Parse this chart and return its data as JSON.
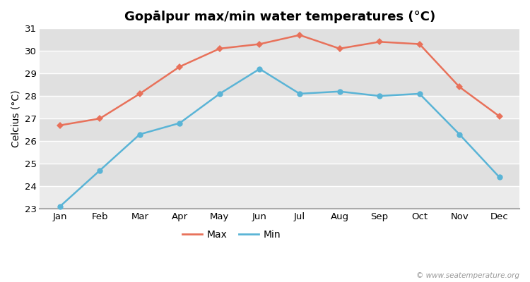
{
  "title": "Gopālpur max/min water temperatures (°C)",
  "ylabel": "Celcius (°C)",
  "months": [
    "Jan",
    "Feb",
    "Mar",
    "Apr",
    "May",
    "Jun",
    "Jul",
    "Aug",
    "Sep",
    "Oct",
    "Nov",
    "Dec"
  ],
  "max_temps": [
    26.7,
    27.0,
    28.1,
    29.3,
    30.1,
    30.3,
    30.7,
    30.1,
    30.4,
    30.3,
    28.4,
    27.1
  ],
  "min_temps": [
    23.1,
    24.7,
    26.3,
    26.8,
    28.1,
    29.2,
    28.1,
    28.2,
    28.0,
    28.1,
    26.3,
    24.4
  ],
  "max_color": "#e8715a",
  "min_color": "#5ab4d6",
  "fig_bg_color": "#ffffff",
  "plot_bg_color": "#e8e8e8",
  "band_light": "#ebebeb",
  "band_dark": "#e0e0e0",
  "grid_color": "#ffffff",
  "ylim": [
    23,
    31
  ],
  "yticks": [
    23,
    24,
    25,
    26,
    27,
    28,
    29,
    30,
    31
  ],
  "legend_labels": [
    "Max",
    "Min"
  ],
  "watermark": "© www.seatemperature.org",
  "title_fontsize": 13,
  "label_fontsize": 10,
  "tick_fontsize": 9.5,
  "legend_fontsize": 10,
  "marker_max": "D",
  "marker_min": "o",
  "marker_size_max": 5,
  "marker_size_min": 6,
  "linewidth": 1.8
}
